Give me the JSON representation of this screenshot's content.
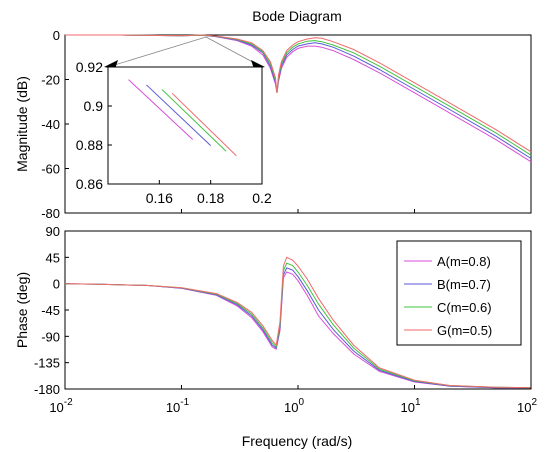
{
  "chart_data": {
    "type": "line",
    "title": "Bode Diagram",
    "xlabel": "Frequency  (rad/s)",
    "x_scale": "log",
    "xlim": [
      0.01,
      100
    ],
    "x_ticks": [
      {
        "base": "10",
        "exp": "-2"
      },
      {
        "base": "10",
        "exp": "-1"
      },
      {
        "base": "10",
        "exp": "0"
      },
      {
        "base": "10",
        "exp": "1"
      },
      {
        "base": "10",
        "exp": "2"
      }
    ],
    "x_tick_values": [
      0.01,
      0.1,
      1,
      10,
      100
    ],
    "colors": [
      "#d84fd8",
      "#5a5ad8",
      "#3fc43f",
      "#f06a6a"
    ],
    "series_names": [
      "A(m=0.8)",
      "B(m=0.7)",
      "C(m=0.6)",
      "G(m=0.5)"
    ],
    "magnitude": {
      "ylabel": "Magnitude (dB)",
      "ylim": [
        -80,
        0
      ],
      "yticks": [
        "0",
        "-20",
        "-40",
        "-60",
        "-80"
      ],
      "ytick_values": [
        0,
        -20,
        -40,
        -60,
        -80
      ],
      "x": [
        0.01,
        0.03,
        0.1,
        0.15,
        0.2,
        0.3,
        0.4,
        0.5,
        0.58,
        0.64,
        0.66,
        0.68,
        0.72,
        0.8,
        0.9,
        1.0,
        1.2,
        1.4,
        1.6,
        2.0,
        3.0,
        5.0,
        10.0,
        20.0,
        50.0,
        100.0
      ],
      "series": [
        {
          "values": [
            0,
            0,
            -0.3,
            -0.1,
            -0.8,
            -2.5,
            -5,
            -9,
            -15,
            -22,
            -26,
            -21,
            -15,
            -10,
            -7.5,
            -6,
            -5,
            -5,
            -5.5,
            -7,
            -11,
            -17,
            -26,
            -35,
            -47,
            -57
          ]
        },
        {
          "values": [
            0,
            0,
            -0.3,
            -0.1,
            -0.7,
            -2.2,
            -4.5,
            -8,
            -14,
            -21,
            -26,
            -20,
            -14,
            -9,
            -6.5,
            -5,
            -4,
            -3.5,
            -4,
            -5.5,
            -9.5,
            -15.5,
            -24.5,
            -33.5,
            -45.5,
            -55.5
          ]
        },
        {
          "values": [
            0,
            0,
            -0.3,
            -0.1,
            -0.6,
            -2,
            -4,
            -7.5,
            -13,
            -20,
            -26,
            -19,
            -13,
            -8,
            -5.5,
            -4,
            -2.8,
            -2.5,
            -3,
            -4.5,
            -8,
            -14,
            -23,
            -32,
            -44,
            -54
          ]
        },
        {
          "values": [
            0,
            0,
            -0.3,
            0,
            -0.5,
            -1.8,
            -3.5,
            -7,
            -12,
            -19,
            -26,
            -18,
            -12,
            -7,
            -4.5,
            -3,
            -1.8,
            -1.2,
            -1.5,
            -3,
            -6.5,
            -12.5,
            -21.5,
            -30.5,
            -42.5,
            -52.5
          ]
        }
      ]
    },
    "phase": {
      "ylabel": "Phase (deg)",
      "ylim": [
        -180,
        90
      ],
      "yticks": [
        "90",
        "45",
        "0",
        "-45",
        "-90",
        "-135",
        "-180"
      ],
      "ytick_values": [
        90,
        45,
        0,
        -45,
        -90,
        -135,
        -180
      ],
      "x": [
        0.01,
        0.02,
        0.05,
        0.1,
        0.2,
        0.3,
        0.4,
        0.5,
        0.6,
        0.65,
        0.7,
        0.75,
        0.8,
        0.9,
        1.0,
        1.2,
        1.5,
        2.0,
        3.0,
        5.0,
        10.0,
        20.0,
        50.0,
        100.0
      ],
      "series": [
        {
          "values": [
            0,
            -1,
            -3,
            -8,
            -20,
            -38,
            -58,
            -82,
            -108,
            -112,
            -80,
            10,
            20,
            16,
            5,
            -20,
            -55,
            -85,
            -120,
            -150,
            -168,
            -175,
            -178,
            -178
          ]
        },
        {
          "values": [
            0,
            -1,
            -3,
            -8,
            -19,
            -36,
            -55,
            -79,
            -105,
            -110,
            -75,
            15,
            27,
            23,
            12,
            -12,
            -45,
            -78,
            -115,
            -148,
            -167,
            -175,
            -178,
            -178
          ]
        },
        {
          "values": [
            0,
            -1,
            -3,
            -7,
            -18,
            -34,
            -52,
            -76,
            -101,
            -108,
            -70,
            22,
            35,
            31,
            20,
            -3,
            -35,
            -70,
            -110,
            -146,
            -166,
            -174,
            -177,
            -178
          ]
        },
        {
          "values": [
            0,
            -1,
            -3,
            -7,
            -17,
            -32,
            -49,
            -72,
            -97,
            -105,
            -65,
            30,
            45,
            40,
            30,
            8,
            -25,
            -62,
            -105,
            -144,
            -165,
            -174,
            -177,
            -178
          ]
        }
      ]
    },
    "inset": {
      "xlim": [
        0.14,
        0.2
      ],
      "ylim": [
        0.86,
        0.92
      ],
      "xticks": [
        "0.16",
        "0.18",
        "0.2"
      ],
      "xtick_values": [
        0.16,
        0.18,
        0.2
      ],
      "yticks": [
        "0.92",
        "0.9",
        "0.88",
        "0.86"
      ],
      "ytick_values": [
        0.92,
        0.9,
        0.88,
        0.86
      ],
      "series": [
        {
          "x": [
            0.148,
            0.173
          ],
          "y": [
            0.9135,
            0.8828
          ]
        },
        {
          "x": [
            0.155,
            0.18
          ],
          "y": [
            0.9108,
            0.8797
          ]
        },
        {
          "x": [
            0.161,
            0.186
          ],
          "y": [
            0.9085,
            0.8768
          ]
        },
        {
          "x": [
            0.165,
            0.19
          ],
          "y": [
            0.9065,
            0.8745
          ]
        }
      ]
    },
    "legend_position": "right of phase panel",
    "grid": false
  }
}
